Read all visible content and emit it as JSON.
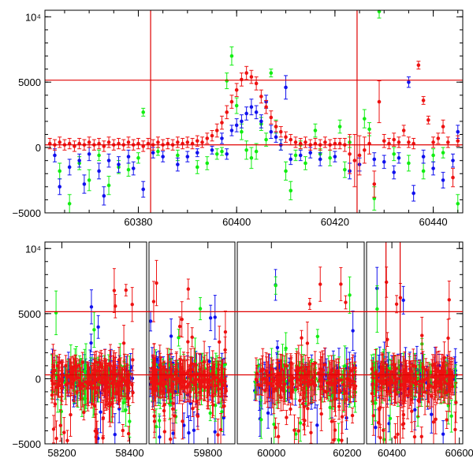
{
  "chart_data": [
    {
      "type": "scatter",
      "panel": "top",
      "ylim": [
        -5000,
        10500
      ],
      "xlim": [
        60361,
        60446
      ],
      "yticks": [
        {
          "value": 10000,
          "label": "10⁴"
        },
        {
          "value": 5000,
          "label": "5000"
        },
        {
          "value": 0,
          "label": "0"
        },
        {
          "value": -5000,
          "label": "−5000"
        }
      ],
      "xticks": [
        {
          "value": 60380,
          "label": "60380"
        },
        {
          "value": 60400,
          "label": "60400"
        },
        {
          "value": 60420,
          "label": "60420"
        },
        {
          "value": 60440,
          "label": "60440"
        }
      ],
      "hlines": [
        5150,
        200
      ],
      "vlines": [
        60382.5,
        60424.5
      ],
      "colors": {
        "red": "#ee1111",
        "green": "#11ee11",
        "blue": "#1111ee",
        "line": "#e00000"
      },
      "series": [
        {
          "color": "green",
          "points": [
            [
              60364,
              -1800,
              600
            ],
            [
              60366,
              -4300,
              700
            ],
            [
              60368,
              -1200,
              500
            ],
            [
              60370,
              -2500,
              800
            ],
            [
              60372,
              -600,
              400
            ],
            [
              60374,
              -2900,
              700
            ],
            [
              60376,
              -1500,
              500
            ],
            [
              60378,
              -1700,
              500
            ],
            [
              60380,
              -800,
              400
            ],
            [
              60381,
              2700,
              300
            ],
            [
              60384,
              -300,
              300
            ],
            [
              60388,
              -600,
              400
            ],
            [
              60392,
              -1500,
              500
            ],
            [
              60394,
              -1200,
              500
            ],
            [
              60396,
              -500,
              400
            ],
            [
              60397,
              -300,
              300
            ],
            [
              60398,
              5100,
              600
            ],
            [
              60399,
              7000,
              700
            ],
            [
              60400,
              3200,
              600
            ],
            [
              60401,
              1200,
              600
            ],
            [
              60402,
              -200,
              700
            ],
            [
              60403,
              -800,
              800
            ],
            [
              60404,
              -300,
              600
            ],
            [
              60405,
              1800,
              500
            ],
            [
              60406,
              600,
              500
            ],
            [
              60407,
              5700,
              300
            ],
            [
              60408,
              1600,
              500
            ],
            [
              60409,
              200,
              400
            ],
            [
              60410,
              -1800,
              700
            ],
            [
              60411,
              -3300,
              700
            ],
            [
              60412,
              -600,
              400
            ],
            [
              60413,
              200,
              300
            ],
            [
              60414,
              -1200,
              500
            ],
            [
              60416,
              1300,
              500
            ],
            [
              60417,
              -500,
              400
            ],
            [
              60419,
              -800,
              600
            ],
            [
              60421,
              1600,
              500
            ],
            [
              60422,
              -1700,
              600
            ],
            [
              60423,
              400,
              400
            ],
            [
              60426,
              2200,
              700
            ],
            [
              60427,
              1400,
              500
            ],
            [
              60428,
              -3900,
              900
            ],
            [
              60429,
              10400,
              500
            ],
            [
              60432,
              -500,
              500
            ],
            [
              60435,
              -1200,
              600
            ],
            [
              60438,
              -1800,
              600
            ],
            [
              60440,
              -600,
              500
            ],
            [
              60442,
              -400,
              400
            ],
            [
              60445,
              -4300,
              700
            ]
          ]
        },
        {
          "color": "blue",
          "points": [
            [
              60363,
              -600,
              500
            ],
            [
              60364,
              -3000,
              600
            ],
            [
              60366,
              -1500,
              600
            ],
            [
              60368,
              -1000,
              500
            ],
            [
              60369,
              -2800,
              700
            ],
            [
              60370,
              -500,
              500
            ],
            [
              60372,
              -1800,
              600
            ],
            [
              60373,
              -3700,
              700
            ],
            [
              60374,
              -1000,
              500
            ],
            [
              60376,
              -1300,
              600
            ],
            [
              60378,
              -700,
              500
            ],
            [
              60379,
              -1600,
              500
            ],
            [
              60381,
              -3200,
              600
            ],
            [
              60383,
              -400,
              400
            ],
            [
              60385,
              -700,
              400
            ],
            [
              60388,
              -1300,
              500
            ],
            [
              60390,
              -700,
              400
            ],
            [
              60392,
              -400,
              300
            ],
            [
              60395,
              -200,
              300
            ],
            [
              60397,
              700,
              400
            ],
            [
              60398,
              -500,
              400
            ],
            [
              60399,
              1300,
              400
            ],
            [
              60400,
              1700,
              500
            ],
            [
              60401,
              2000,
              500
            ],
            [
              60402,
              2600,
              500
            ],
            [
              60403,
              3100,
              600
            ],
            [
              60404,
              2700,
              500
            ],
            [
              60405,
              2000,
              500
            ],
            [
              60406,
              3500,
              500
            ],
            [
              60407,
              1200,
              500
            ],
            [
              60408,
              800,
              400
            ],
            [
              60409,
              200,
              400
            ],
            [
              60410,
              4600,
              900
            ],
            [
              60411,
              -900,
              400
            ],
            [
              60413,
              -600,
              400
            ],
            [
              60415,
              -400,
              400
            ],
            [
              60417,
              -900,
              500
            ],
            [
              60420,
              -700,
              400
            ],
            [
              60423,
              -1800,
              600
            ],
            [
              60425,
              -1300,
              500
            ],
            [
              60428,
              -900,
              500
            ],
            [
              60430,
              -1100,
              500
            ],
            [
              60432,
              -1900,
              500
            ],
            [
              60433,
              -800,
              400
            ],
            [
              60435,
              5000,
              400
            ],
            [
              60436,
              -3500,
              600
            ],
            [
              60438,
              -700,
              500
            ],
            [
              60440,
              -1600,
              500
            ],
            [
              60442,
              -2500,
              600
            ],
            [
              60444,
              -1000,
              500
            ],
            [
              60445,
              1200,
              500
            ]
          ]
        },
        {
          "color": "red",
          "points": [
            [
              60362,
              300,
              400
            ],
            [
              60363,
              200,
              400
            ],
            [
              60364,
              400,
              400
            ],
            [
              60365,
              200,
              400
            ],
            [
              60366,
              300,
              400
            ],
            [
              60367,
              100,
              400
            ],
            [
              60368,
              300,
              400
            ],
            [
              60369,
              200,
              400
            ],
            [
              60370,
              400,
              400
            ],
            [
              60371,
              200,
              400
            ],
            [
              60372,
              300,
              400
            ],
            [
              60373,
              100,
              400
            ],
            [
              60374,
              400,
              400
            ],
            [
              60375,
              200,
              400
            ],
            [
              60376,
              300,
              400
            ],
            [
              60377,
              200,
              400
            ],
            [
              60378,
              400,
              400
            ],
            [
              60379,
              200,
              400
            ],
            [
              60380,
              300,
              400
            ],
            [
              60381,
              100,
              400
            ],
            [
              60382,
              300,
              400
            ],
            [
              60383,
              200,
              400
            ],
            [
              60384,
              400,
              400
            ],
            [
              60385,
              200,
              400
            ],
            [
              60386,
              300,
              400
            ],
            [
              60387,
              200,
              400
            ],
            [
              60388,
              400,
              400
            ],
            [
              60389,
              300,
              400
            ],
            [
              60390,
              400,
              400
            ],
            [
              60391,
              300,
              400
            ],
            [
              60392,
              500,
              400
            ],
            [
              60393,
              400,
              400
            ],
            [
              60394,
              700,
              400
            ],
            [
              60395,
              900,
              400
            ],
            [
              60396,
              1300,
              500
            ],
            [
              60397,
              1900,
              500
            ],
            [
              60398,
              2700,
              500
            ],
            [
              60399,
              3500,
              500
            ],
            [
              60400,
              4400,
              500
            ],
            [
              60401,
              5200,
              500
            ],
            [
              60402,
              5700,
              500
            ],
            [
              60403,
              5400,
              500
            ],
            [
              60404,
              4900,
              500
            ],
            [
              60405,
              3900,
              500
            ],
            [
              60406,
              3100,
              500
            ],
            [
              60407,
              2300,
              500
            ],
            [
              60408,
              1600,
              400
            ],
            [
              60409,
              1200,
              400
            ],
            [
              60410,
              800,
              400
            ],
            [
              60411,
              600,
              400
            ],
            [
              60412,
              400,
              400
            ],
            [
              60413,
              300,
              400
            ],
            [
              60414,
              400,
              400
            ],
            [
              60415,
              200,
              400
            ],
            [
              60416,
              300,
              400
            ],
            [
              60417,
              200,
              400
            ],
            [
              60418,
              400,
              400
            ],
            [
              60419,
              200,
              400
            ],
            [
              60420,
              300,
              400
            ],
            [
              60421,
              300,
              400
            ],
            [
              60422,
              200,
              500
            ],
            [
              60423,
              -500,
              1500
            ],
            [
              60424,
              -1000,
              2000
            ],
            [
              60425,
              -600,
              1500
            ],
            [
              60426,
              -200,
              1000
            ],
            [
              60427,
              300,
              800
            ],
            [
              60428,
              -2800,
              1000
            ],
            [
              60429,
              3500,
              1600
            ],
            [
              60430,
              500,
              500
            ],
            [
              60431,
              300,
              400
            ],
            [
              60432,
              600,
              500
            ],
            [
              60433,
              400,
              400
            ],
            [
              60434,
              1300,
              400
            ],
            [
              60435,
              400,
              400
            ],
            [
              60436,
              300,
              400
            ],
            [
              60437,
              6300,
              300
            ],
            [
              60438,
              3600,
              300
            ],
            [
              60439,
              2100,
              300
            ],
            [
              60440,
              400,
              400
            ],
            [
              60441,
              700,
              400
            ],
            [
              60442,
              1600,
              500
            ],
            [
              60443,
              400,
              400
            ],
            [
              60444,
              -2300,
              700
            ],
            [
              60445,
              500,
              400
            ]
          ]
        }
      ]
    },
    {
      "type": "scatter",
      "panel": "bottom",
      "ylim": [
        -5000,
        10500
      ],
      "yticks": [
        {
          "value": 10000,
          "label": "10⁴"
        },
        {
          "value": 5000,
          "label": "5000"
        },
        {
          "value": 0,
          "label": "0"
        },
        {
          "value": -5000,
          "label": "−5000"
        }
      ],
      "hlines": [
        5150,
        300
      ],
      "colors": {
        "red": "#ee1111",
        "green": "#11ee11",
        "blue": "#1111ee",
        "line": "#e00000"
      },
      "segments": [
        {
          "xlim": [
            58150,
            58450
          ],
          "xticks": [
            {
              "value": 58200,
              "label": "58200"
            },
            {
              "value": 58400,
              "label": "58400"
            }
          ],
          "data_range": [
            58170,
            58410
          ],
          "vlines": []
        },
        {
          "xlim": [
            59560,
            59910
          ],
          "xticks": [
            {
              "value": 59800,
              "label": "59800"
            }
          ],
          "data_range": [
            59565,
            59875
          ],
          "vlines": []
        },
        {
          "xlim": [
            59910,
            60245
          ],
          "xticks": [
            {
              "value": 60000,
              "label": "60000"
            },
            {
              "value": 60200,
              "label": "60200"
            }
          ],
          "data_range": [
            59955,
            60225
          ],
          "vlines": []
        },
        {
          "xlim": [
            60325,
            60610
          ],
          "xticks": [
            {
              "value": 60400,
              "label": "60400"
            },
            {
              "value": 60600,
              "label": "60600"
            }
          ],
          "data_range": [
            60340,
            60590
          ],
          "vlines": [
            60382.5,
            60424.5
          ]
        }
      ]
    }
  ]
}
